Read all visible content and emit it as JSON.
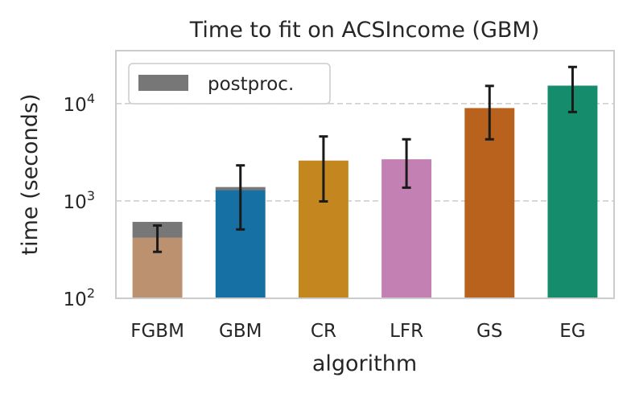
{
  "chart_data": {
    "type": "bar",
    "title": "Time to fit on ACSIncome (GBM)",
    "xlabel": "algorithm",
    "ylabel": "time (seconds)",
    "yscale": "log",
    "ylim": [
      100,
      35000
    ],
    "yticks": [
      {
        "value": 100,
        "base": "10",
        "exp": "2"
      },
      {
        "value": 1000,
        "base": "10",
        "exp": "3"
      },
      {
        "value": 10000,
        "base": "10",
        "exp": "4"
      }
    ],
    "grid": "horizontal dashed",
    "legend": {
      "placement": "top-left",
      "entries": [
        {
          "label": "postproc.",
          "color": "#777777"
        }
      ]
    },
    "categories": [
      "FGBM",
      "GBM",
      "CR",
      "LFR",
      "GS",
      "EG"
    ],
    "series": [
      {
        "values": [
          420,
          1290,
          2600,
          2680,
          9000,
          15300
        ],
        "colors": [
          "#bc9170",
          "#1670a3",
          "#c4861f",
          "#c380b3",
          "#b8621d",
          "#158c6c"
        ],
        "error_low": [
          300,
          510,
          990,
          1370,
          4300,
          8200
        ],
        "error_high": [
          560,
          2320,
          4600,
          4300,
          15200,
          23800
        ]
      },
      {
        "name": "postproc.",
        "values": [
          190,
          100,
          0,
          0,
          0,
          0
        ],
        "color": "#777777"
      }
    ]
  }
}
